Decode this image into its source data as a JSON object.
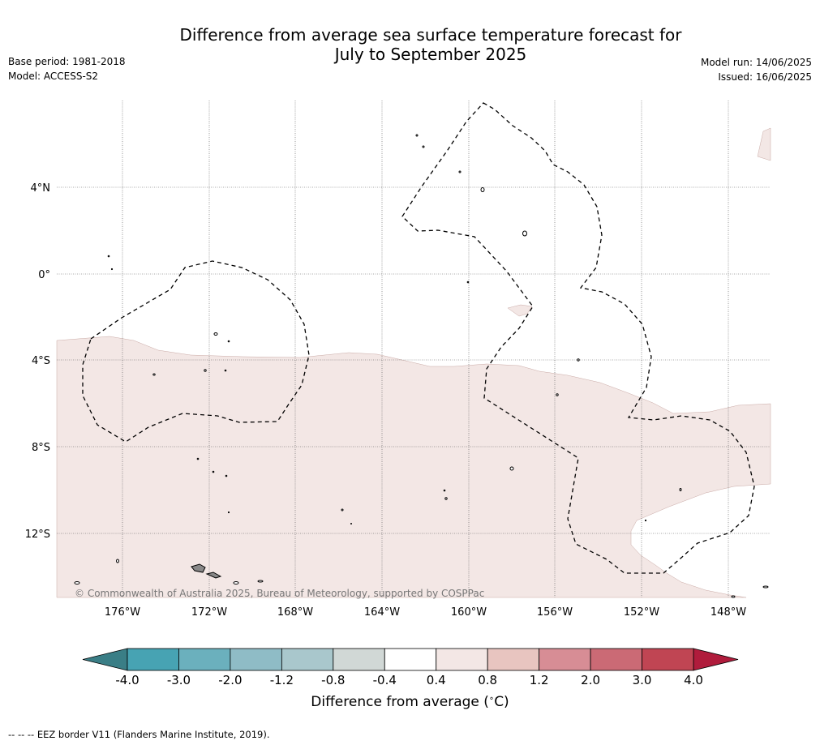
{
  "title": {
    "line1": "Difference from average sea surface temperature forecast for",
    "line2": "July to September 2025"
  },
  "meta": {
    "base_period": "Base period: 1981-2018",
    "model": "Model: ACCESS-S2",
    "model_run": "Model run: 14/06/2025",
    "issued": "Issued: 16/06/2025"
  },
  "map": {
    "longitude_labels": [
      "176°W",
      "172°W",
      "168°W",
      "164°W",
      "160°W",
      "156°W",
      "152°W",
      "148°W"
    ],
    "latitude_labels": [
      "4°N",
      "0°",
      "4°S",
      "8°S",
      "12°S"
    ],
    "copyright": "© Commonwealth of Australia 2025, Bureau of Meteorology, supported by COSPPac",
    "fill_color": "#f3e7e5",
    "border_style": "dashed"
  },
  "colorbar": {
    "ticks": [
      "-4.0",
      "-3.0",
      "-2.0",
      "-1.2",
      "-0.8",
      "-0.4",
      "0.4",
      "0.8",
      "1.2",
      "2.0",
      "3.0",
      "4.0"
    ],
    "colors": [
      "#47a3b3",
      "#6bb0bd",
      "#8fbcc6",
      "#a9c7cc",
      "#d1d8d6",
      "#ffffff",
      "#f3e7e5",
      "#e8c5c0",
      "#d78d95",
      "#cb6a75",
      "#c04553"
    ],
    "under_color": "#3a7e86",
    "over_color": "#b01c3c",
    "label": "Difference from average (",
    "unit_deg": "∘",
    "unit_c": "C)"
  },
  "footer": "--  --  -- EEZ border V11 (Flanders Marine Institute, 2019)."
}
